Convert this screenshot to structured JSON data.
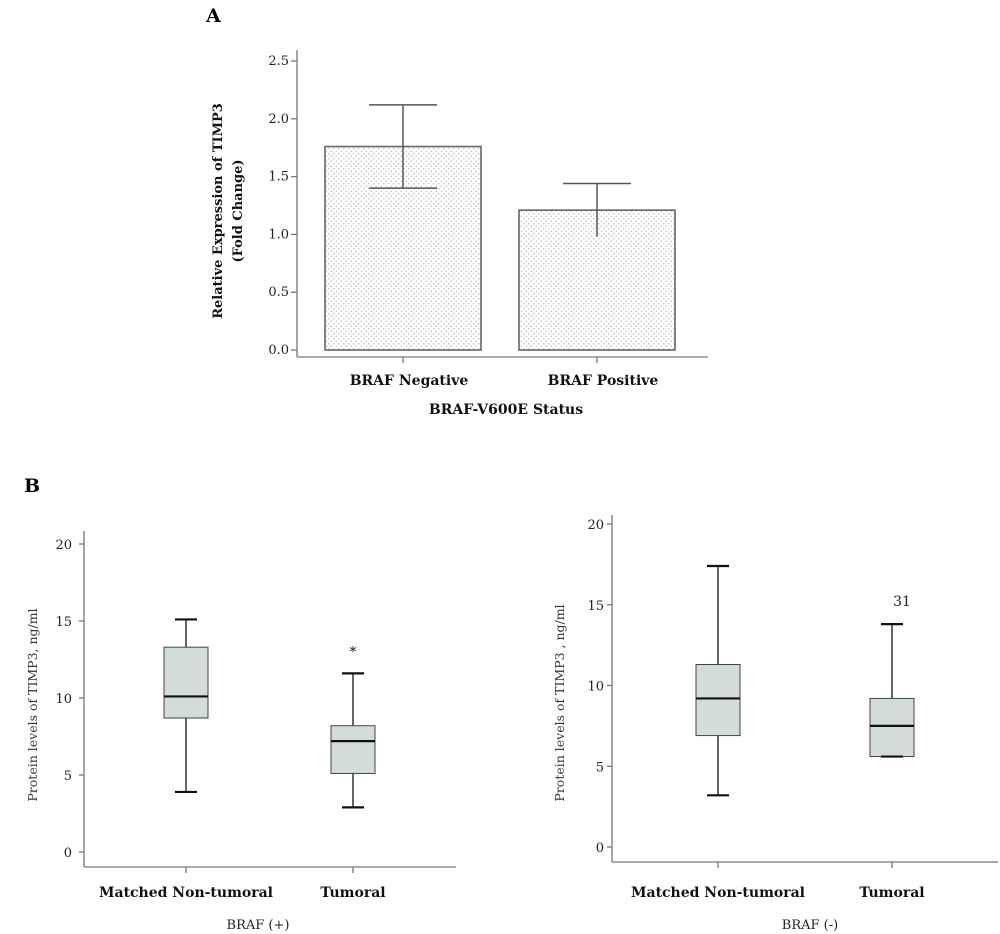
{
  "panels": {
    "a": "A",
    "b": "B"
  },
  "colors": {
    "bar_fill_pattern": "#bdbdbd",
    "box_fill": "#d3dcdb",
    "axis": "#777777"
  },
  "chart_data": [
    {
      "id": "A",
      "type": "bar",
      "categories": [
        "BRAF Negative",
        "BRAF Positive"
      ],
      "values": [
        1.76,
        1.21
      ],
      "error_upper": [
        2.12,
        1.44
      ],
      "error_lower": [
        1.4,
        0.98
      ],
      "title": "",
      "xlabel": "BRAF-V600E Status",
      "ylabel": [
        "Relative Expression of TIMP3",
        "(Fold Change)"
      ],
      "ylim": [
        0,
        2.5
      ],
      "yticks": [
        "0.0",
        "0.5",
        "1.0",
        "1.5",
        "2.0",
        "2.5"
      ],
      "grid": false
    },
    {
      "id": "B-left",
      "type": "box",
      "categories": [
        "Matched Non-tumoral",
        "Tumoral"
      ],
      "boxes": [
        {
          "whisker_low": 3.9,
          "q1": 8.7,
          "median": 10.1,
          "q3": 13.3,
          "whisker_high": 15.1
        },
        {
          "whisker_low": 2.9,
          "q1": 5.1,
          "median": 7.2,
          "q3": 8.2,
          "whisker_high": 11.6
        }
      ],
      "outliers": [
        {
          "category": 1,
          "value": 13.1,
          "label": "*"
        }
      ],
      "title": "",
      "xlabel": "BRAF (+)",
      "ylabel": "Protein levels of TIMP3, ng/ml",
      "ylim": [
        0,
        20
      ],
      "yticks": [
        "0",
        "5",
        "10",
        "15",
        "20"
      ],
      "grid": false
    },
    {
      "id": "B-right",
      "type": "box",
      "categories": [
        "Matched Non-tumoral",
        "Tumoral"
      ],
      "boxes": [
        {
          "whisker_low": 3.2,
          "q1": 6.9,
          "median": 9.2,
          "q3": 11.3,
          "whisker_high": 17.4
        },
        {
          "whisker_low": 5.6,
          "q1": 5.6,
          "median": 7.5,
          "q3": 9.2,
          "whisker_high": 13.8
        }
      ],
      "outliers": [
        {
          "category": 1,
          "value": 15.3,
          "label": "31"
        }
      ],
      "title": "",
      "xlabel": "BRAF (-)",
      "ylabel": "Protein levels of TIMP3 , ng/ml",
      "ylim": [
        0,
        20
      ],
      "yticks": [
        "0",
        "5",
        "10",
        "15",
        "20"
      ],
      "grid": false
    }
  ]
}
